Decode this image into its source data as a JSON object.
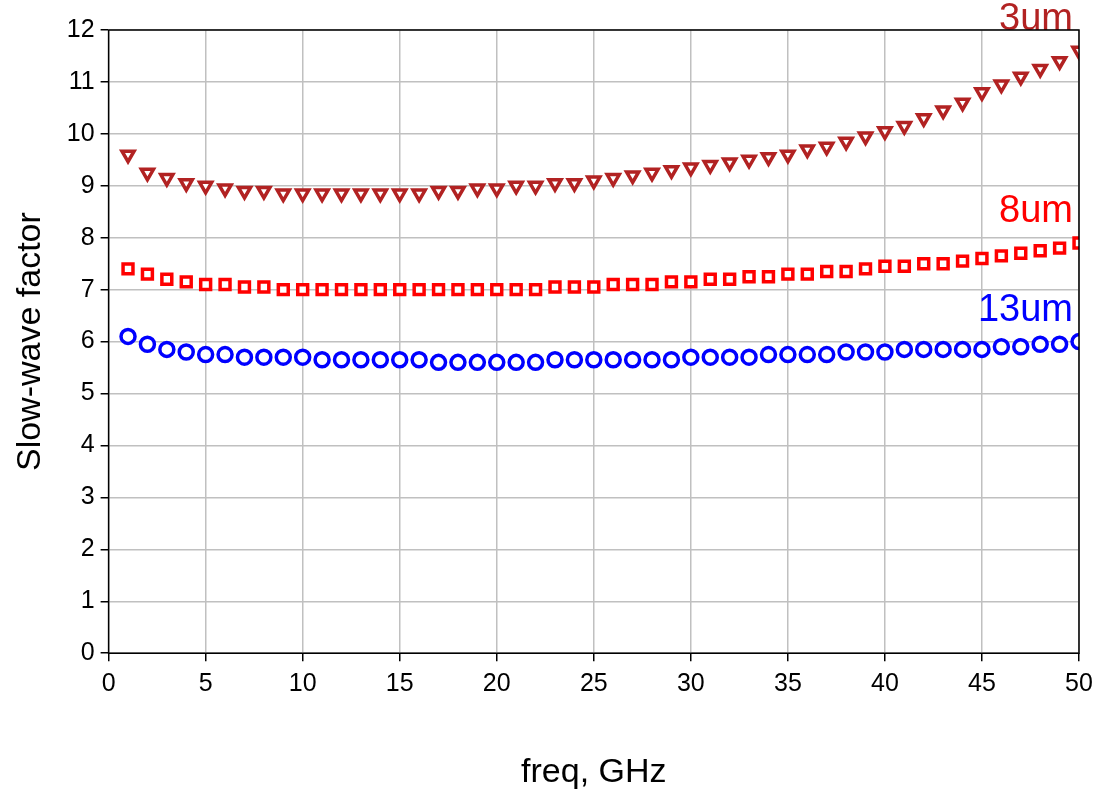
{
  "chart_data": {
    "type": "scatter",
    "xlabel": "freq, GHz",
    "ylabel": "Slow-wave factor",
    "x": [
      1,
      2,
      3,
      4,
      5,
      6,
      7,
      8,
      9,
      10,
      11,
      12,
      13,
      14,
      15,
      16,
      17,
      18,
      19,
      20,
      21,
      22,
      23,
      24,
      25,
      26,
      27,
      28,
      29,
      30,
      31,
      32,
      33,
      34,
      35,
      36,
      37,
      38,
      39,
      40,
      41,
      42,
      43,
      44,
      45,
      46,
      47,
      48,
      49,
      50
    ],
    "xlim": [
      0,
      50
    ],
    "xticks": [
      0,
      5,
      10,
      15,
      20,
      25,
      30,
      35,
      40,
      45,
      50
    ],
    "ylim": [
      0,
      12
    ],
    "yticks": [
      0,
      1,
      2,
      3,
      4,
      5,
      6,
      7,
      8,
      9,
      10,
      11,
      12
    ],
    "grid": true,
    "legend": false,
    "series": [
      {
        "name": "3um",
        "color": "#b22222",
        "marker": "triangle",
        "values": [
          9.6,
          9.25,
          9.15,
          9.05,
          9.0,
          8.95,
          8.9,
          8.9,
          8.85,
          8.85,
          8.85,
          8.85,
          8.85,
          8.85,
          8.85,
          8.85,
          8.9,
          8.9,
          8.95,
          8.95,
          9.0,
          9.0,
          9.05,
          9.05,
          9.1,
          9.15,
          9.2,
          9.25,
          9.3,
          9.35,
          9.4,
          9.45,
          9.5,
          9.55,
          9.6,
          9.7,
          9.75,
          9.85,
          9.95,
          10.05,
          10.15,
          10.3,
          10.45,
          10.6,
          10.8,
          10.95,
          11.1,
          11.25,
          11.4,
          11.6
        ]
      },
      {
        "name": "8um",
        "color": "#ff0000",
        "marker": "square",
        "values": [
          7.4,
          7.3,
          7.2,
          7.15,
          7.1,
          7.1,
          7.05,
          7.05,
          7.0,
          7.0,
          7.0,
          7.0,
          7.0,
          7.0,
          7.0,
          7.0,
          7.0,
          7.0,
          7.0,
          7.0,
          7.0,
          7.0,
          7.05,
          7.05,
          7.05,
          7.1,
          7.1,
          7.1,
          7.15,
          7.15,
          7.2,
          7.2,
          7.25,
          7.25,
          7.3,
          7.3,
          7.35,
          7.35,
          7.4,
          7.45,
          7.45,
          7.5,
          7.5,
          7.55,
          7.6,
          7.65,
          7.7,
          7.75,
          7.8,
          7.9
        ]
      },
      {
        "name": "13um",
        "color": "#0000ff",
        "marker": "circle",
        "values": [
          6.1,
          5.95,
          5.85,
          5.8,
          5.75,
          5.75,
          5.7,
          5.7,
          5.7,
          5.7,
          5.65,
          5.65,
          5.65,
          5.65,
          5.65,
          5.65,
          5.6,
          5.6,
          5.6,
          5.6,
          5.6,
          5.6,
          5.65,
          5.65,
          5.65,
          5.65,
          5.65,
          5.65,
          5.65,
          5.7,
          5.7,
          5.7,
          5.7,
          5.75,
          5.75,
          5.75,
          5.75,
          5.8,
          5.8,
          5.8,
          5.85,
          5.85,
          5.85,
          5.85,
          5.85,
          5.9,
          5.9,
          5.95,
          5.95,
          6.0
        ]
      }
    ]
  }
}
